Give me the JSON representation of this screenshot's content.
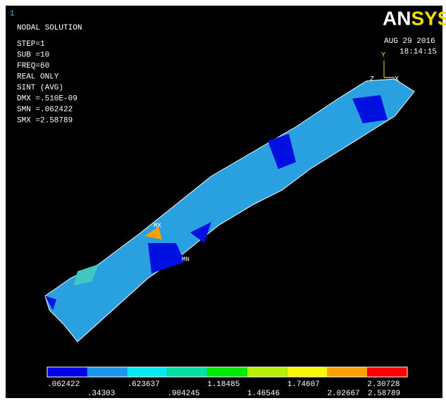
{
  "window_number": "1",
  "info": [
    "NODAL SOLUTION",
    "STEP=1",
    "SUB =10",
    "FREQ=60",
    "REAL ONLY",
    "SINT     (AVG)",
    "DMX =.510E-09",
    "SMN =.062422",
    "SMX =2.58789"
  ],
  "logo": "ANSYS",
  "date": "AUG 29 2016",
  "time": "18:14:15",
  "triad": {
    "y": "Y",
    "z": "Z",
    "x": "X"
  },
  "markers": {
    "max": "MX",
    "min": "MN"
  },
  "legend": {
    "colors": [
      "#0000e6",
      "#1c96e8",
      "#00e8f0",
      "#00e0a0",
      "#00e800",
      "#b4f000",
      "#f8f800",
      "#ffa000",
      "#ff0000"
    ],
    "labels": [
      ".062422",
      ".34303",
      ".623637",
      ".904245",
      "1.18485",
      "1.46546",
      "1.74607",
      "2.02667",
      "2.30728",
      "2.58789"
    ]
  }
}
